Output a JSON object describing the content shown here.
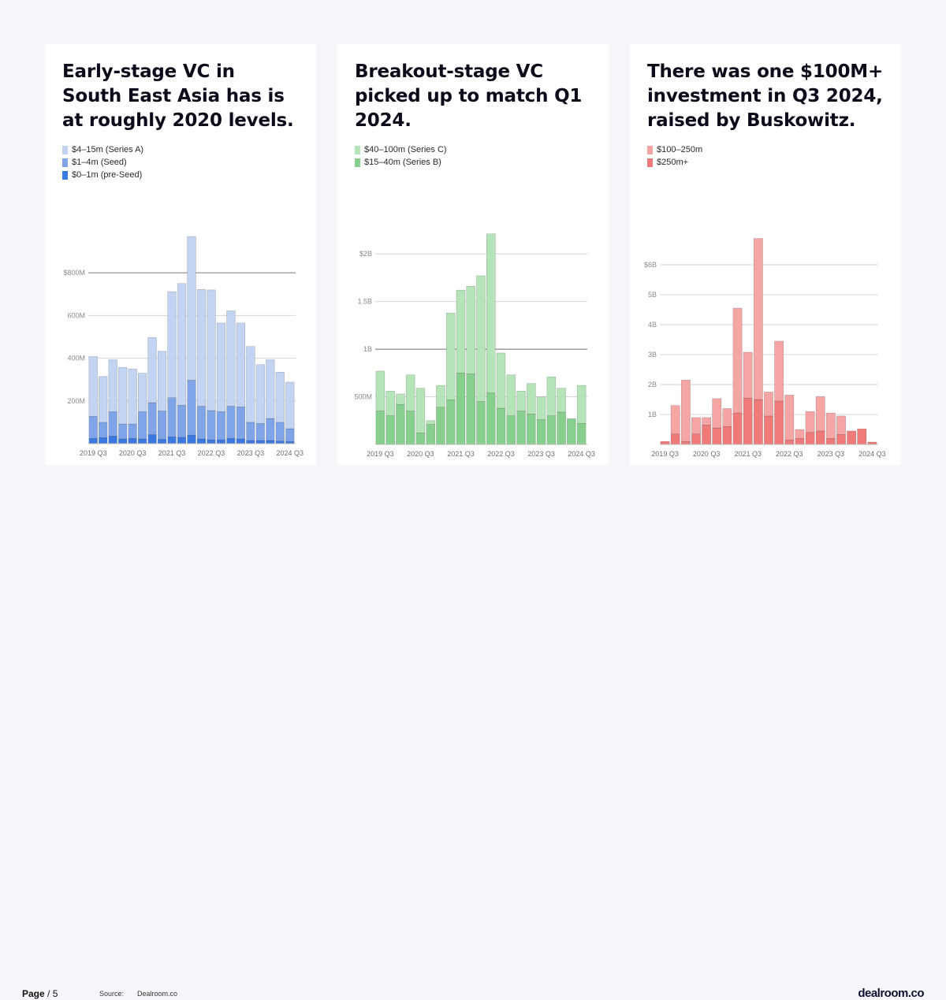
{
  "footer": {
    "page_label": "Page",
    "page_number": "/ 5",
    "source_label": "Source:",
    "source_value": "Dealroom.co",
    "logo": "dealroom.co"
  },
  "cards": [
    {
      "title": "Early-stage VC in South East Asia has is at roughly 2020 levels.",
      "legend": [
        {
          "label": "$4–15m (Series A)",
          "color": "#c3d3f2"
        },
        {
          "label": "$1–4m (Seed)",
          "color": "#7fa5e8"
        },
        {
          "label": "$0–1m (pre-Seed)",
          "color": "#3b78e0"
        }
      ]
    },
    {
      "title": "Breakout-stage VC picked up to match Q1 2024.",
      "legend": [
        {
          "label": "$40–100m (Series C)",
          "color": "#b5e4b9"
        },
        {
          "label": "$15–40m (Series B)",
          "color": "#86cf8c"
        }
      ]
    },
    {
      "title": "There was one $100M+ investment in Q3 2024, raised by Buskowitz.",
      "legend": [
        {
          "label": "$100–250m",
          "color": "#f6a5a5"
        },
        {
          "label": "$250m+",
          "color": "#f07a7a"
        }
      ]
    }
  ],
  "chart_data": [
    {
      "type": "bar",
      "stacked": true,
      "categories": [
        "2019 Q3",
        "2019 Q4",
        "2020 Q1",
        "2020 Q2",
        "2020 Q3",
        "2020 Q4",
        "2021 Q1",
        "2021 Q2",
        "2021 Q3",
        "2021 Q4",
        "2022 Q1",
        "2022 Q2",
        "2022 Q3",
        "2022 Q4",
        "2023 Q1",
        "2023 Q2",
        "2023 Q3",
        "2023 Q4",
        "2024 Q1",
        "2024 Q2",
        "2024 Q3"
      ],
      "tick_labels": [
        "2019 Q3",
        "2020 Q3",
        "2021 Q3",
        "2022 Q3",
        "2023 Q3",
        "2024 Q3"
      ],
      "ylim": [
        0,
        1000
      ],
      "yticks": [
        200,
        400,
        600,
        800
      ],
      "ytick_labels": [
        "200M",
        "400M",
        "600M",
        "$800M"
      ],
      "major_gridline": 800,
      "series": [
        {
          "name": "$0–1m (pre-Seed)",
          "color": "#3b78e0",
          "values": [
            25,
            28,
            35,
            22,
            25,
            22,
            42,
            20,
            32,
            30,
            40,
            22,
            18,
            18,
            25,
            22,
            15,
            15,
            15,
            12,
            10
          ]
        },
        {
          "name": "$1–4m (Seed)",
          "color": "#7fa5e8",
          "values": [
            103,
            72,
            115,
            70,
            67,
            128,
            150,
            133,
            183,
            150,
            257,
            153,
            137,
            132,
            150,
            150,
            85,
            80,
            103,
            88,
            60
          ]
        },
        {
          "name": "$4–15m (Series A)",
          "color": "#c3d3f2",
          "values": [
            280,
            215,
            243,
            265,
            258,
            180,
            305,
            280,
            497,
            570,
            673,
            547,
            565,
            415,
            447,
            393,
            355,
            275,
            275,
            235,
            218
          ]
        }
      ]
    },
    {
      "type": "bar",
      "stacked": true,
      "categories": [
        "2019 Q3",
        "2019 Q4",
        "2020 Q1",
        "2020 Q2",
        "2020 Q3",
        "2020 Q4",
        "2021 Q1",
        "2021 Q2",
        "2021 Q3",
        "2021 Q4",
        "2022 Q1",
        "2022 Q2",
        "2022 Q3",
        "2022 Q4",
        "2023 Q1",
        "2023 Q2",
        "2023 Q3",
        "2023 Q4",
        "2024 Q1",
        "2024 Q2",
        "2024 Q3"
      ],
      "tick_labels": [
        "2019 Q3",
        "2020 Q3",
        "2021 Q3",
        "2022 Q3",
        "2023 Q3",
        "2024 Q3"
      ],
      "ylim": [
        0,
        2200
      ],
      "yticks": [
        500,
        1000,
        1500,
        2000
      ],
      "ytick_labels": [
        "500M",
        "1B",
        "1.5B",
        "$2B"
      ],
      "major_gridline": 1000,
      "series": [
        {
          "name": "$15–40m (Series B)",
          "color": "#86cf8c",
          "values": [
            350,
            300,
            420,
            350,
            120,
            210,
            390,
            470,
            750,
            740,
            450,
            540,
            380,
            300,
            350,
            320,
            260,
            300,
            340,
            270,
            220
          ]
        },
        {
          "name": "$40–100m (Series C)",
          "color": "#b5e4b9",
          "values": [
            420,
            260,
            110,
            380,
            470,
            40,
            230,
            910,
            870,
            920,
            1320,
            1670,
            580,
            430,
            210,
            320,
            240,
            410,
            250,
            0,
            400
          ]
        }
      ]
    },
    {
      "type": "bar",
      "stacked": true,
      "categories": [
        "2019 Q3",
        "2019 Q4",
        "2020 Q1",
        "2020 Q2",
        "2020 Q3",
        "2020 Q4",
        "2021 Q1",
        "2021 Q2",
        "2021 Q3",
        "2021 Q4",
        "2022 Q1",
        "2022 Q2",
        "2022 Q3",
        "2022 Q4",
        "2023 Q1",
        "2023 Q2",
        "2023 Q3",
        "2023 Q4",
        "2024 Q1",
        "2024 Q2",
        "2024 Q3"
      ],
      "tick_labels": [
        "2019 Q3",
        "2020 Q3",
        "2021 Q3",
        "2022 Q3",
        "2023 Q3",
        "2024 Q3"
      ],
      "ylim": [
        0,
        7000
      ],
      "yticks": [
        1000,
        2000,
        3000,
        4000,
        5000,
        6000
      ],
      "ytick_labels": [
        "1B",
        "2B",
        "3B",
        "4B",
        "5B",
        "$6B"
      ],
      "major_gridline": null,
      "series": [
        {
          "name": "$250m+",
          "color": "#f07a7a",
          "values": [
            100,
            350,
            100,
            350,
            650,
            550,
            600,
            1050,
            1550,
            1500,
            950,
            1450,
            150,
            200,
            400,
            450,
            200,
            330,
            450,
            520,
            80
          ]
        },
        {
          "name": "$100–250m",
          "color": "#f6a5a5",
          "values": [
            0,
            950,
            2050,
            550,
            250,
            980,
            600,
            3500,
            1530,
            5380,
            800,
            2000,
            1500,
            300,
            700,
            1150,
            850,
            620,
            0,
            0,
            0
          ]
        }
      ]
    }
  ]
}
